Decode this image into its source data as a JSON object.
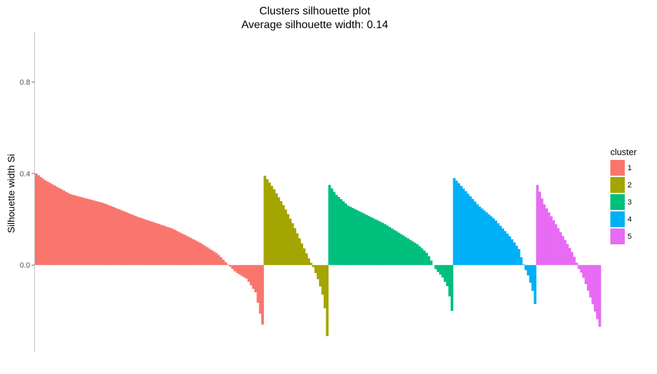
{
  "chart_data": {
    "type": "bar",
    "title": "Clusters silhouette plot",
    "subtitle": "Average silhouette width: 0.14",
    "xlabel": "",
    "ylabel": "Silhouette width Si",
    "ylim": [
      -0.38,
      1.02
    ],
    "yticks": [
      0.0,
      0.4,
      0.8
    ],
    "ytick_labels": [
      "0.0",
      "0.4",
      "0.8"
    ],
    "grid": false,
    "legend": {
      "title": "cluster",
      "position": "right"
    },
    "series": [
      {
        "name": "1",
        "color": "#F8766D",
        "count": 99,
        "profile": [
          [
            0,
            0.4
          ],
          [
            0.04,
            0.37
          ],
          [
            0.15,
            0.31
          ],
          [
            0.3,
            0.27
          ],
          [
            0.45,
            0.21
          ],
          [
            0.6,
            0.16
          ],
          [
            0.72,
            0.1
          ],
          [
            0.8,
            0.05
          ],
          [
            0.84,
            0.01
          ],
          [
            0.88,
            -0.03
          ],
          [
            0.93,
            -0.06
          ],
          [
            0.97,
            -0.12
          ],
          [
            1,
            -0.26
          ]
        ]
      },
      {
        "name": "2",
        "color": "#A3A500",
        "count": 28,
        "profile": [
          [
            0,
            0.39
          ],
          [
            0.15,
            0.33
          ],
          [
            0.3,
            0.26
          ],
          [
            0.45,
            0.18
          ],
          [
            0.6,
            0.09
          ],
          [
            0.72,
            0.02
          ],
          [
            0.78,
            -0.01
          ],
          [
            0.85,
            -0.06
          ],
          [
            0.92,
            -0.12
          ],
          [
            0.97,
            -0.2
          ],
          [
            1,
            -0.31
          ]
        ]
      },
      {
        "name": "3",
        "color": "#00BF7D",
        "count": 54,
        "profile": [
          [
            0,
            0.35
          ],
          [
            0.05,
            0.31
          ],
          [
            0.15,
            0.26
          ],
          [
            0.3,
            0.22
          ],
          [
            0.45,
            0.18
          ],
          [
            0.6,
            0.13
          ],
          [
            0.72,
            0.09
          ],
          [
            0.8,
            0.05
          ],
          [
            0.84,
            0.01
          ],
          [
            0.87,
            -0.02
          ],
          [
            0.92,
            -0.05
          ],
          [
            0.97,
            -0.1
          ],
          [
            1,
            -0.2
          ]
        ]
      },
      {
        "name": "4",
        "color": "#00B0F6",
        "count": 36,
        "profile": [
          [
            0,
            0.38
          ],
          [
            0.15,
            0.32
          ],
          [
            0.3,
            0.26
          ],
          [
            0.5,
            0.2
          ],
          [
            0.7,
            0.12
          ],
          [
            0.8,
            0.07
          ],
          [
            0.84,
            0.02
          ],
          [
            0.87,
            -0.01
          ],
          [
            0.92,
            -0.05
          ],
          [
            0.97,
            -0.11
          ],
          [
            1,
            -0.17
          ]
        ]
      },
      {
        "name": "5",
        "color": "#E76BF3",
        "count": 28,
        "profile": [
          [
            0,
            0.35
          ],
          [
            0.1,
            0.27
          ],
          [
            0.25,
            0.2
          ],
          [
            0.4,
            0.13
          ],
          [
            0.55,
            0.06
          ],
          [
            0.62,
            0.02
          ],
          [
            0.65,
            -0.01
          ],
          [
            0.72,
            -0.04
          ],
          [
            0.8,
            -0.1
          ],
          [
            0.9,
            -0.18
          ],
          [
            1,
            -0.27
          ]
        ]
      }
    ]
  }
}
